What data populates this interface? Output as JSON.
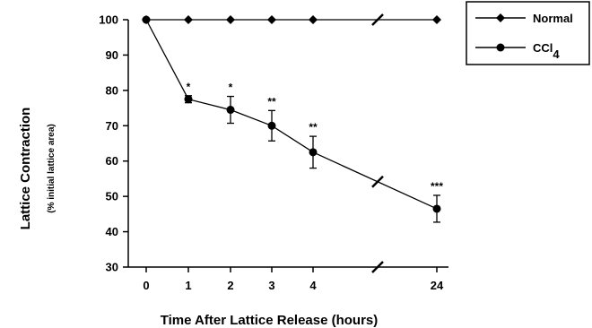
{
  "chart_data": {
    "type": "line",
    "ylabel": "Lattice Contraction",
    "ylabel_sub": "(% initial lattice area)",
    "xlabel": "Time After Lattice Release (hours)",
    "ylim": [
      30,
      100
    ],
    "yticks": [
      30,
      40,
      50,
      60,
      70,
      80,
      90,
      100
    ],
    "xticks": [
      "0",
      "1",
      "2",
      "3",
      "4",
      "24"
    ],
    "x_axis_break": "between 4 and 24",
    "grid": false,
    "legend_position": "top-right",
    "series": [
      {
        "name": "Normal",
        "marker": "diamond",
        "x": [
          "0",
          "1",
          "2",
          "3",
          "4",
          "24"
        ],
        "values": [
          100,
          100,
          100,
          100,
          100,
          100
        ]
      },
      {
        "name": "CCl4",
        "name_main": "CCl",
        "name_sub": "4",
        "marker": "circle",
        "x": [
          "0",
          "1",
          "2",
          "3",
          "4",
          "24"
        ],
        "values": [
          100,
          77.5,
          74.5,
          70,
          62.5,
          46.5
        ],
        "error": [
          0,
          1,
          3.8,
          4.3,
          4.5,
          3.8
        ],
        "significance": [
          "",
          "*",
          "*",
          "**",
          "**",
          "***"
        ]
      }
    ]
  }
}
